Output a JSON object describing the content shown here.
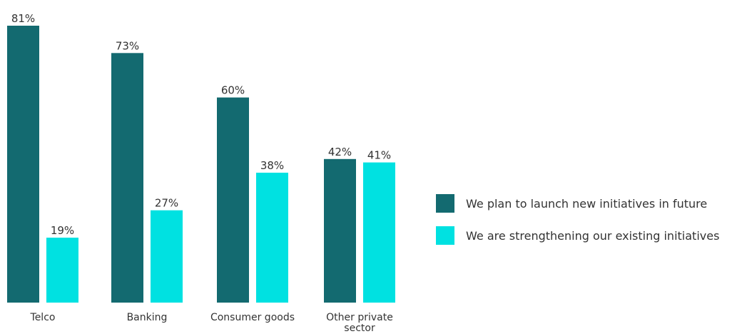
{
  "chart_data": {
    "type": "bar",
    "categories": [
      "Telco",
      "Banking",
      "Consumer goods",
      "Other private\nsector"
    ],
    "series": [
      {
        "name": "We plan to launch new initiatives in future",
        "values": [
          81,
          73,
          60,
          42
        ],
        "color": "#136a70"
      },
      {
        "name": "We are strengthening our existing initiatives",
        "values": [
          19,
          27,
          38,
          41
        ],
        "color": "#00e1e1"
      }
    ],
    "value_suffix": "%",
    "ylim": [
      0,
      81
    ],
    "grid": false,
    "legend_position": "right"
  }
}
